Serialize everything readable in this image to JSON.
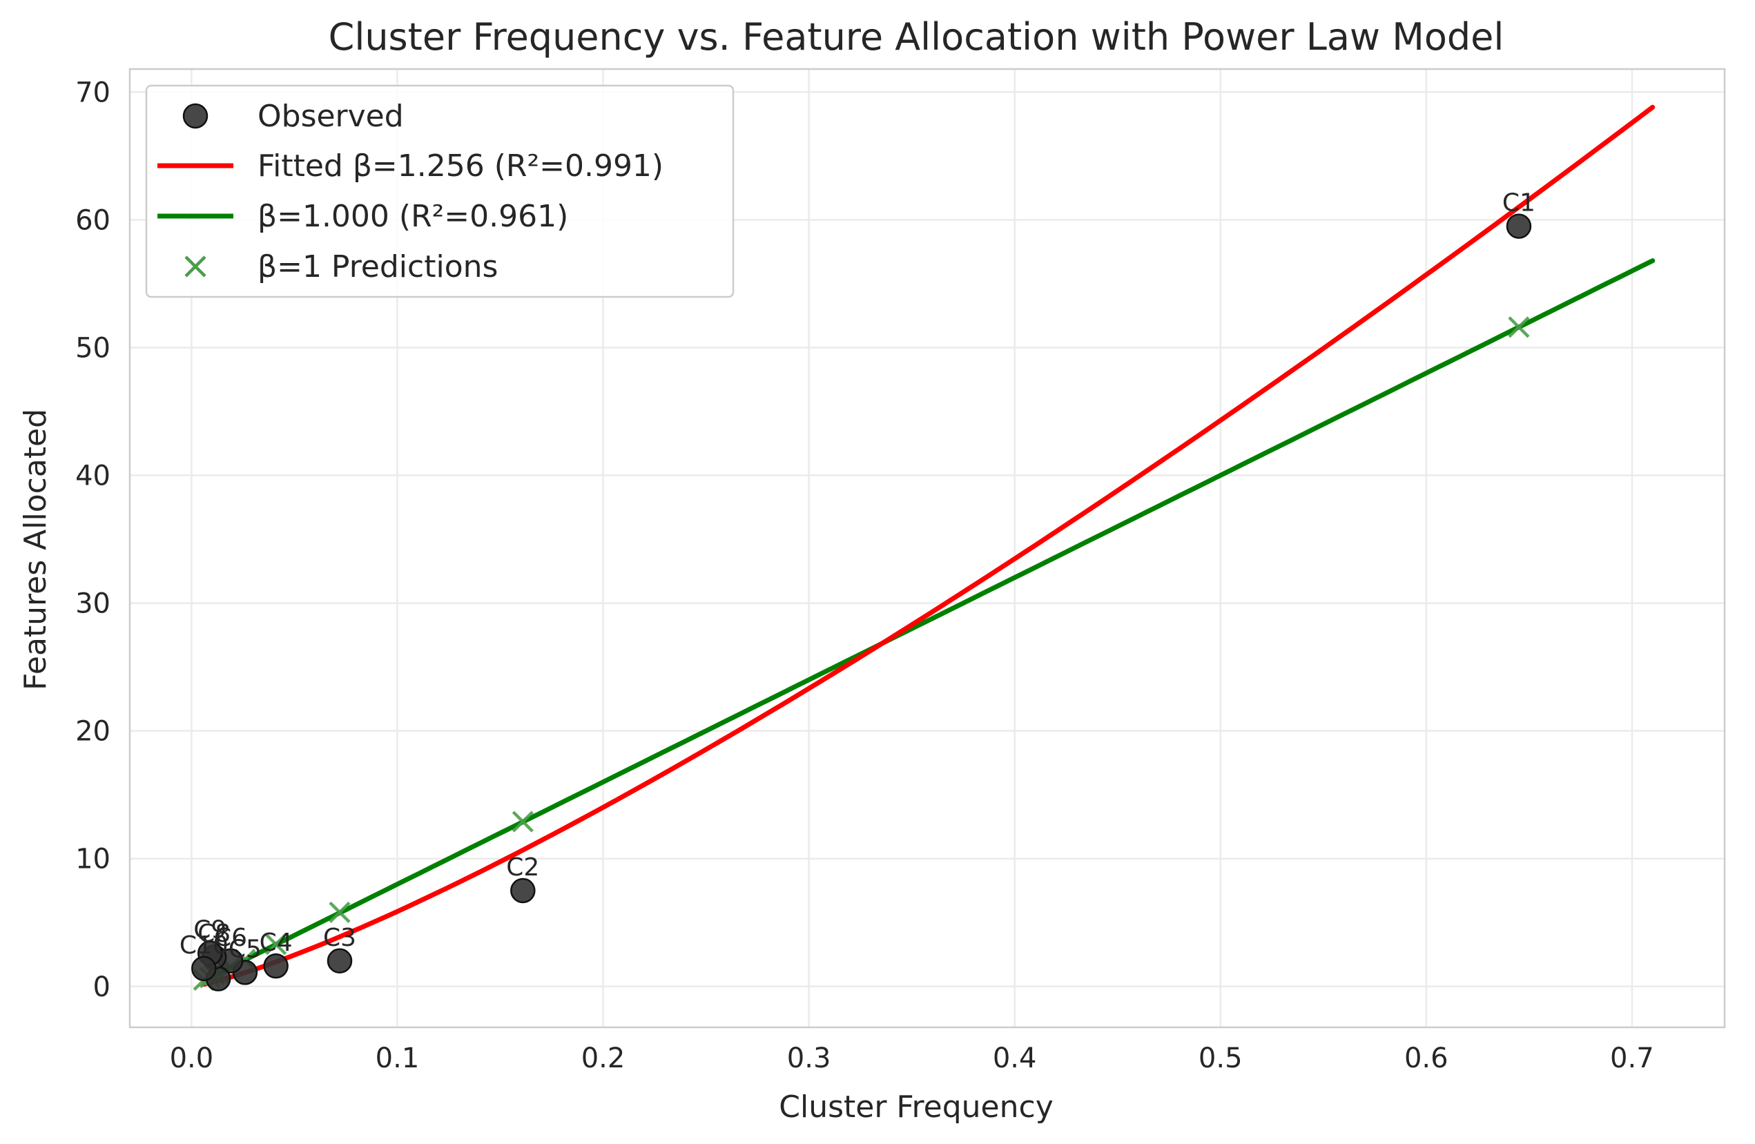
{
  "chart_data": {
    "type": "scatter",
    "title": "Cluster Frequency vs. Feature Allocation with Power Law Model",
    "xlabel": "Cluster Frequency",
    "ylabel": "Features Allocated",
    "xlim": [
      -0.03,
      0.745
    ],
    "ylim": [
      -3.2,
      71.8
    ],
    "xticks": [
      0.0,
      0.1,
      0.2,
      0.3,
      0.4,
      0.5,
      0.6,
      0.7
    ],
    "xtick_labels": [
      "0.0",
      "0.1",
      "0.2",
      "0.3",
      "0.4",
      "0.5",
      "0.6",
      "0.7"
    ],
    "yticks": [
      0,
      10,
      20,
      30,
      40,
      50,
      60,
      70
    ],
    "ytick_labels": [
      "0",
      "10",
      "20",
      "30",
      "40",
      "50",
      "60",
      "70"
    ],
    "grid": true,
    "legend_position": "top-left",
    "colors": {
      "observed": "#333333",
      "fitted": "#ff0000",
      "beta1": "#008000",
      "predictions": "#4a9e4a",
      "grid": "#ebebeb",
      "spine": "#cccccc"
    },
    "series": [
      {
        "name": "Observed",
        "kind": "scatter",
        "points": [
          {
            "x": 0.645,
            "y": 59.5,
            "label": "C1"
          },
          {
            "x": 0.161,
            "y": 7.5,
            "label": "C2"
          },
          {
            "x": 0.072,
            "y": 2.0,
            "label": "C3"
          },
          {
            "x": 0.041,
            "y": 1.6,
            "label": "C4"
          },
          {
            "x": 0.026,
            "y": 1.1,
            "label": "C5"
          },
          {
            "x": 0.019,
            "y": 2.0,
            "label": "C6"
          },
          {
            "x": 0.013,
            "y": 0.6,
            "label": ""
          },
          {
            "x": 0.011,
            "y": 2.3,
            "label": "C8"
          },
          {
            "x": 0.009,
            "y": 2.6,
            "label": "C9"
          },
          {
            "x": 0.006,
            "y": 1.4,
            "label": "C10"
          }
        ]
      },
      {
        "name": "Fitted β=1.256 (R²=0.991)",
        "kind": "line",
        "beta": 1.256,
        "coefficient": 105.8,
        "x_range": [
          0.006,
          0.71
        ]
      },
      {
        "name": "β=1.000 (R²=0.961)",
        "kind": "line",
        "beta": 1.0,
        "coefficient": 80.0,
        "x_range": [
          0.006,
          0.71
        ]
      },
      {
        "name": "β=1 Predictions",
        "kind": "marker-x",
        "points": [
          {
            "x": 0.645,
            "y": 51.6
          },
          {
            "x": 0.161,
            "y": 12.9
          },
          {
            "x": 0.072,
            "y": 5.8
          },
          {
            "x": 0.041,
            "y": 3.3
          },
          {
            "x": 0.026,
            "y": 2.1
          },
          {
            "x": 0.019,
            "y": 1.5
          },
          {
            "x": 0.013,
            "y": 1.0
          },
          {
            "x": 0.011,
            "y": 0.9
          },
          {
            "x": 0.009,
            "y": 0.7
          },
          {
            "x": 0.006,
            "y": 0.5
          }
        ]
      }
    ]
  }
}
